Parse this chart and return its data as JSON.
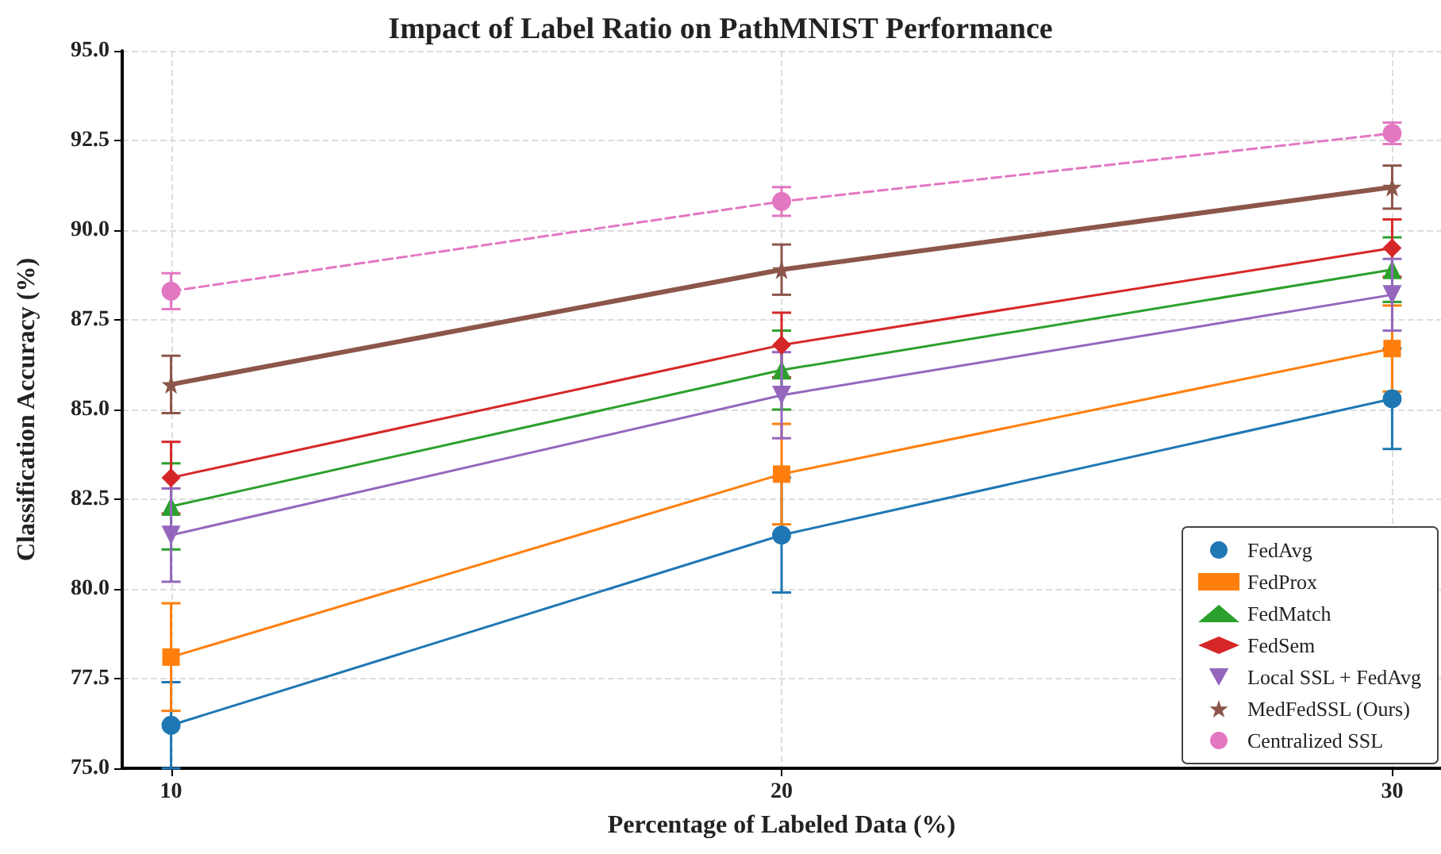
{
  "chart_data": {
    "type": "line",
    "title": "Impact of Label Ratio on PathMNIST Performance",
    "xlabel": "Percentage of Labeled Data (%)",
    "ylabel": "Classification Accuracy (%)",
    "x": [
      10,
      20,
      30
    ],
    "xlim": [
      9.2,
      30.8
    ],
    "xticks": [
      10,
      20,
      30
    ],
    "ylim": [
      75,
      95
    ],
    "yticks": [
      {
        "value": 75,
        "label": "75.0"
      },
      {
        "value": 77.5,
        "label": "77.5"
      },
      {
        "value": 80,
        "label": "80.0"
      },
      {
        "value": 82.5,
        "label": "82.5"
      },
      {
        "value": 85,
        "label": "85.0"
      },
      {
        "value": 87.5,
        "label": "87.5"
      },
      {
        "value": 90,
        "label": "90.0"
      },
      {
        "value": 92.5,
        "label": "92.5"
      },
      {
        "value": 95,
        "label": "95.0"
      }
    ],
    "grid": true,
    "legend": "bottom right",
    "line_style": "solid",
    "series": [
      {
        "name": "FedAvg",
        "color": "#1f77b4",
        "marker": "circle",
        "values": [
          76.2,
          81.5,
          85.3
        ],
        "errors": [
          1.2,
          1.6,
          1.4
        ]
      },
      {
        "name": "FedProx",
        "color": "#ff7f0e",
        "marker": "square",
        "values": [
          78.1,
          83.2,
          86.7
        ],
        "errors": [
          1.5,
          1.4,
          1.2
        ]
      },
      {
        "name": "FedMatch",
        "color": "#2ca02c",
        "marker": "triangle",
        "values": [
          82.3,
          86.1,
          88.9
        ],
        "errors": [
          1.2,
          1.1,
          0.9
        ]
      },
      {
        "name": "FedSem",
        "color": "#d62728",
        "marker": "diamond",
        "values": [
          83.1,
          86.8,
          89.5
        ],
        "errors": [
          1.0,
          0.9,
          0.8
        ]
      },
      {
        "name": "Local SSL + FedAvg",
        "color": "#9467bd",
        "marker": "triangle_down",
        "values": [
          81.5,
          85.4,
          88.2
        ],
        "errors": [
          1.3,
          1.2,
          1.0
        ]
      },
      {
        "name": "MedFedSSL (Ours)",
        "color": "#8c564b",
        "marker": "star",
        "values": [
          85.7,
          88.9,
          91.2
        ],
        "errors": [
          0.8,
          0.7,
          0.6
        ]
      },
      {
        "name": "Centralized SSL",
        "color": "#e377c2",
        "marker": "circle",
        "line_style": "dashed",
        "values": [
          88.3,
          90.8,
          92.7
        ],
        "errors": [
          0.5,
          0.4,
          0.3
        ]
      }
    ]
  }
}
